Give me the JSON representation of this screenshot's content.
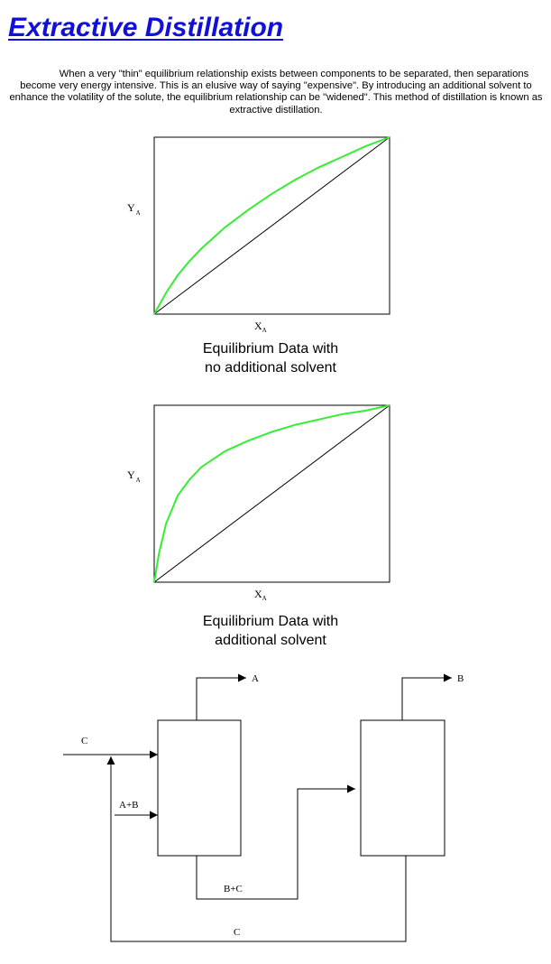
{
  "page": {
    "title": "Extractive Distillation",
    "intro": "When a very \"thin\" equilibrium relationship exists between components to be separated, then separations become very energy intensive.  This is an elusive way of saying \"expensive\".  By introducing an additional solvent to enhance the volatility of the solute, the equilibrium relationship can be \"widened\".  This method of distillation is known as extractive distillation."
  },
  "chart_data": [
    {
      "type": "line",
      "title": "",
      "caption_line1": "Equilibrium Data with",
      "caption_line2": "no additional solvent",
      "xlabel_main": "X",
      "xlabel_sub": "A",
      "ylabel_main": "Y",
      "ylabel_sub": "A",
      "xlim": [
        0,
        1
      ],
      "ylim": [
        0,
        1
      ],
      "grid": false,
      "series": [
        {
          "role": "equilibrium",
          "color": "#33ee33",
          "x": [
            0,
            0.05,
            0.1,
            0.15,
            0.2,
            0.3,
            0.4,
            0.5,
            0.6,
            0.7,
            0.8,
            0.9,
            1.0
          ],
          "y": [
            0,
            0.12,
            0.22,
            0.3,
            0.37,
            0.49,
            0.59,
            0.68,
            0.76,
            0.83,
            0.89,
            0.95,
            1.0
          ]
        },
        {
          "role": "diagonal",
          "color": "#000000",
          "x": [
            0,
            1
          ],
          "y": [
            0,
            1
          ]
        }
      ]
    },
    {
      "type": "line",
      "title": "",
      "caption_line1": "Equilibrium Data with",
      "caption_line2": "additional solvent",
      "xlabel_main": "X",
      "xlabel_sub": "A",
      "ylabel_main": "Y",
      "ylabel_sub": "A",
      "xlim": [
        0,
        1
      ],
      "ylim": [
        0,
        1
      ],
      "grid": false,
      "series": [
        {
          "role": "equilibrium",
          "color": "#33ee33",
          "x": [
            0,
            0.02,
            0.05,
            0.1,
            0.15,
            0.2,
            0.3,
            0.4,
            0.5,
            0.6,
            0.7,
            0.8,
            0.9,
            1.0
          ],
          "y": [
            0,
            0.16,
            0.33,
            0.49,
            0.58,
            0.65,
            0.74,
            0.8,
            0.85,
            0.89,
            0.92,
            0.95,
            0.97,
            1.0
          ]
        },
        {
          "role": "diagonal",
          "color": "#000000",
          "x": [
            0,
            1
          ],
          "y": [
            0,
            1
          ]
        }
      ]
    }
  ],
  "flow": {
    "stream_top_left": "A",
    "stream_top_right": "B",
    "feed_solvent": "C",
    "feed_mixture": "A+B",
    "stream_middle": "B+C",
    "stream_recycle": "C"
  }
}
